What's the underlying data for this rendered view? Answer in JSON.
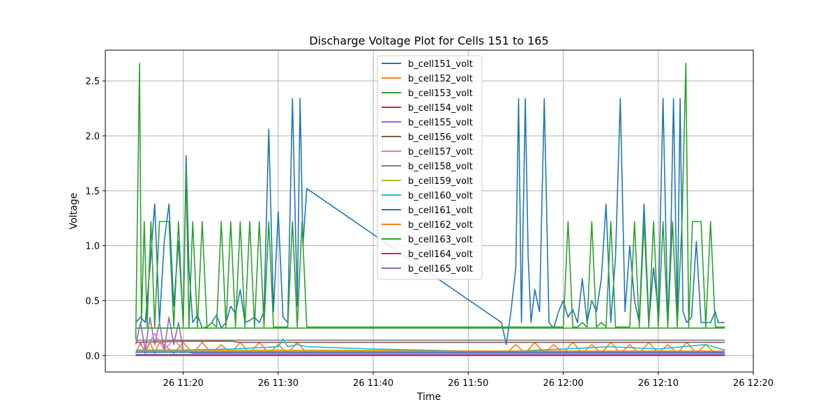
{
  "chart_data": {
    "type": "line",
    "title": "Discharge Voltage Plot for Cells 151 to 165",
    "xlabel": "Time",
    "ylabel": "Voltage",
    "x_unit": "minutes after 26 11:00",
    "xlim": [
      11.8,
      80.0
    ],
    "ylim": [
      -0.15,
      2.78
    ],
    "xticks": [
      {
        "value": 20,
        "label": "26 11:20"
      },
      {
        "value": 30,
        "label": "26 11:30"
      },
      {
        "value": 40,
        "label": "26 11:40"
      },
      {
        "value": 50,
        "label": "26 11:50"
      },
      {
        "value": 60,
        "label": "26 12:00"
      },
      {
        "value": 70,
        "label": "26 12:10"
      },
      {
        "value": 80,
        "label": "26 12:20"
      }
    ],
    "yticks": [
      {
        "value": 0.0,
        "label": "0.0"
      },
      {
        "value": 0.5,
        "label": "0.5"
      },
      {
        "value": 1.0,
        "label": "1.0"
      },
      {
        "value": 1.5,
        "label": "1.5"
      },
      {
        "value": 2.0,
        "label": "2.0"
      },
      {
        "value": 2.5,
        "label": "2.5"
      }
    ],
    "grid": true,
    "legend_position": "top-center",
    "series": [
      {
        "name": "b_cell151_volt",
        "color": "#1f77b4",
        "x": [
          15.0,
          15.5,
          16.0,
          16.5,
          17.0,
          17.5,
          18.0,
          18.5,
          19.0,
          19.5,
          20.0,
          20.3,
          20.6,
          21.0,
          21.5,
          22.0,
          22.5,
          23.0,
          23.5,
          24.0,
          24.5,
          25.0,
          25.5,
          26.0,
          26.5,
          27.0,
          27.5,
          28.0,
          28.5,
          29.0,
          29.5,
          30.0,
          30.5,
          31.0,
          31.5,
          32.0,
          32.3,
          32.6,
          33.0,
          53.5,
          54.0,
          54.5,
          55.0,
          55.3,
          55.6,
          56.0,
          56.3,
          56.6,
          57.0,
          57.5,
          58.0,
          58.5,
          59.0,
          59.5,
          60.0,
          60.5,
          61.0,
          61.5,
          62.0,
          62.5,
          63.0,
          63.5,
          64.0,
          64.5,
          65.0,
          65.5,
          66.0,
          66.5,
          67.0,
          67.5,
          68.0,
          68.5,
          69.0,
          69.5,
          70.0,
          70.5,
          71.0,
          71.3,
          71.6,
          72.0,
          72.3,
          72.6,
          73.0,
          73.5,
          74.0,
          74.5,
          75.0,
          75.5,
          76.0,
          76.3,
          76.6,
          77.0
        ],
        "y": [
          0.3,
          0.35,
          0.3,
          0.8,
          1.38,
          0.3,
          1.04,
          1.38,
          0.45,
          1.04,
          0.3,
          1.82,
          0.8,
          0.3,
          0.37,
          0.25,
          0.26,
          0.3,
          0.37,
          0.25,
          0.3,
          0.45,
          0.38,
          0.6,
          0.3,
          0.32,
          0.35,
          0.3,
          0.4,
          2.06,
          0.4,
          1.31,
          0.35,
          0.3,
          2.34,
          0.45,
          2.34,
          1.0,
          1.52,
          0.3,
          0.1,
          0.4,
          0.8,
          2.34,
          0.3,
          2.34,
          0.9,
          0.3,
          0.6,
          0.4,
          2.34,
          0.3,
          0.25,
          0.4,
          0.5,
          0.35,
          0.42,
          0.3,
          0.7,
          0.3,
          0.5,
          0.4,
          0.7,
          1.38,
          0.3,
          0.9,
          2.34,
          0.4,
          1.0,
          0.5,
          0.3,
          1.38,
          0.3,
          0.8,
          0.4,
          2.34,
          0.3,
          1.0,
          2.34,
          0.35,
          2.34,
          0.4,
          0.3,
          0.35,
          1.04,
          0.3,
          0.3,
          0.3,
          0.4,
          0.3,
          0.3,
          0.3
        ]
      },
      {
        "name": "b_cell152_volt",
        "color": "#ff7f0e",
        "x": [
          15.0,
          15.5,
          16.0,
          16.5,
          17.0,
          17.5,
          18.0,
          19.0,
          20.0,
          21.0,
          22.0,
          23.0,
          24.0,
          25.0,
          26.0,
          27.0,
          28.0,
          29.0,
          30.0,
          31.0,
          32.0,
          33.0,
          54.0,
          55.0,
          56.0,
          57.0,
          58.0,
          59.0,
          60.0,
          61.0,
          62.0,
          63.0,
          64.0,
          65.0,
          66.0,
          67.0,
          68.0,
          69.0,
          70.0,
          71.0,
          72.0,
          73.0,
          74.0,
          75.0,
          76.0,
          77.0
        ],
        "y": [
          0.02,
          0.12,
          0.02,
          0.12,
          0.02,
          0.12,
          0.1,
          0.02,
          0.12,
          0.02,
          0.12,
          0.02,
          0.1,
          0.02,
          0.12,
          0.02,
          0.12,
          0.02,
          0.1,
          0.02,
          0.12,
          0.02,
          0.02,
          0.1,
          0.02,
          0.12,
          0.02,
          0.1,
          0.02,
          0.12,
          0.02,
          0.1,
          0.02,
          0.12,
          0.02,
          0.1,
          0.02,
          0.12,
          0.02,
          0.1,
          0.02,
          0.12,
          0.02,
          0.1,
          0.02,
          0.02
        ]
      },
      {
        "name": "b_cell153_volt",
        "color": "#2ca02c",
        "x": [
          15.0,
          15.4,
          15.6,
          15.9,
          16.2,
          16.6,
          17.0,
          17.5,
          18.0,
          18.5,
          19.0,
          19.5,
          20.0,
          20.3,
          20.6,
          21.0,
          21.5,
          22.0,
          22.5,
          23.0,
          23.5,
          24.0,
          24.5,
          25.0,
          25.5,
          26.0,
          26.5,
          27.0,
          27.5,
          28.0,
          28.5,
          29.0,
          29.5,
          30.0,
          30.5,
          31.0,
          31.5,
          32.0,
          32.5,
          33.0,
          60.0,
          60.5,
          61.0,
          61.5,
          62.0,
          62.5,
          63.0,
          63.5,
          64.0,
          64.5,
          65.0,
          65.5,
          66.0,
          66.5,
          67.0,
          67.5,
          68.0,
          68.5,
          69.0,
          69.5,
          70.0,
          70.5,
          71.0,
          71.5,
          72.0,
          72.5,
          72.9,
          73.2,
          73.6,
          74.0,
          74.5,
          75.0,
          75.5,
          76.0,
          76.5,
          77.0
        ],
        "y": [
          0.15,
          2.66,
          0.3,
          1.22,
          0.26,
          1.22,
          0.26,
          1.22,
          1.22,
          1.22,
          0.26,
          1.22,
          0.26,
          1.7,
          0.26,
          1.22,
          0.26,
          1.22,
          0.26,
          0.3,
          0.26,
          1.22,
          0.26,
          1.22,
          0.26,
          1.22,
          0.26,
          1.22,
          0.26,
          1.22,
          0.26,
          1.22,
          0.26,
          0.26,
          0.26,
          0.26,
          1.22,
          0.26,
          1.22,
          0.26,
          0.26,
          1.22,
          0.26,
          0.26,
          0.3,
          0.26,
          1.22,
          0.26,
          0.3,
          0.26,
          1.22,
          0.26,
          0.26,
          0.26,
          0.26,
          1.22,
          0.26,
          1.22,
          0.26,
          1.22,
          0.26,
          1.22,
          0.26,
          1.22,
          0.26,
          1.22,
          2.66,
          0.26,
          1.22,
          1.22,
          1.22,
          0.26,
          1.22,
          0.26,
          0.26,
          0.26
        ]
      },
      {
        "name": "b_cell154_volt",
        "color": "#d62728",
        "x": [
          15.0,
          33.0,
          55.0,
          77.0
        ],
        "y": [
          0.0,
          0.0,
          0.0,
          0.0
        ]
      },
      {
        "name": "b_cell155_volt",
        "color": "#9467bd",
        "x": [
          15.0,
          15.5,
          16.0,
          16.5,
          17.0,
          17.5,
          18.0,
          18.5,
          19.0,
          19.5,
          20.0,
          21.0,
          22.0,
          23.0,
          24.0,
          25.0,
          33.0,
          55.0,
          77.0
        ],
        "y": [
          0.1,
          0.3,
          0.05,
          0.35,
          0.1,
          0.3,
          0.05,
          0.35,
          0.1,
          0.3,
          0.05,
          0.02,
          0.03,
          0.02,
          0.03,
          0.02,
          0.02,
          0.02,
          0.02
        ]
      },
      {
        "name": "b_cell156_volt",
        "color": "#8c564b",
        "x": [
          15.0,
          20.0,
          25.0,
          26.0,
          33.0,
          55.0,
          77.0
        ],
        "y": [
          0.12,
          0.13,
          0.13,
          0.12,
          0.12,
          0.12,
          0.12
        ]
      },
      {
        "name": "b_cell157_volt",
        "color": "#e377c2",
        "x": [
          15.0,
          16.0,
          17.0,
          18.0,
          19.0,
          20.0,
          21.0,
          33.0,
          55.0,
          77.0
        ],
        "y": [
          0.15,
          0.05,
          0.2,
          0.05,
          0.15,
          0.05,
          0.02,
          0.02,
          0.02,
          0.02
        ]
      },
      {
        "name": "b_cell158_volt",
        "color": "#7f7f7f",
        "x": [
          15.0,
          20.0,
          25.0,
          26.0,
          33.0,
          55.0,
          77.0
        ],
        "y": [
          0.14,
          0.14,
          0.14,
          0.14,
          0.14,
          0.14,
          0.14
        ]
      },
      {
        "name": "b_cell159_volt",
        "color": "#bcbd22",
        "x": [
          15.0,
          33.0,
          55.0,
          77.0
        ],
        "y": [
          0.05,
          0.05,
          0.04,
          0.04
        ]
      },
      {
        "name": "b_cell160_volt",
        "color": "#17becf",
        "x": [
          15.0,
          20.0,
          25.0,
          30.0,
          30.5,
          31.0,
          32.0,
          33.0,
          40.0,
          50.0,
          55.0,
          60.0,
          65.0,
          70.0,
          75.0,
          77.0
        ],
        "y": [
          0.05,
          0.05,
          0.06,
          0.08,
          0.15,
          0.08,
          0.1,
          0.08,
          0.06,
          0.04,
          0.04,
          0.06,
          0.08,
          0.06,
          0.1,
          0.05
        ]
      },
      {
        "name": "b_cell161_volt",
        "color": "#1f77b4",
        "x": [
          15.0,
          33.0,
          55.0,
          77.0
        ],
        "y": [
          0.03,
          0.03,
          0.03,
          0.03
        ]
      },
      {
        "name": "b_cell162_volt",
        "color": "#ff7f0e",
        "x": [
          15.0,
          33.0,
          55.0,
          77.0
        ],
        "y": [
          0.04,
          0.04,
          0.04,
          0.04
        ]
      },
      {
        "name": "b_cell163_volt",
        "color": "#2ca02c",
        "x": [
          15.0,
          33.0,
          55.0,
          77.0
        ],
        "y": [
          0.25,
          0.25,
          0.25,
          0.25
        ]
      },
      {
        "name": "b_cell164_volt",
        "color": "#d62728",
        "x": [
          15.0,
          33.0,
          55.0,
          77.0
        ],
        "y": [
          0.01,
          0.01,
          0.01,
          0.01
        ]
      },
      {
        "name": "b_cell165_volt",
        "color": "#9467bd",
        "x": [
          15.0,
          33.0,
          55.0,
          77.0
        ],
        "y": [
          0.01,
          0.01,
          0.01,
          0.01
        ]
      }
    ]
  }
}
